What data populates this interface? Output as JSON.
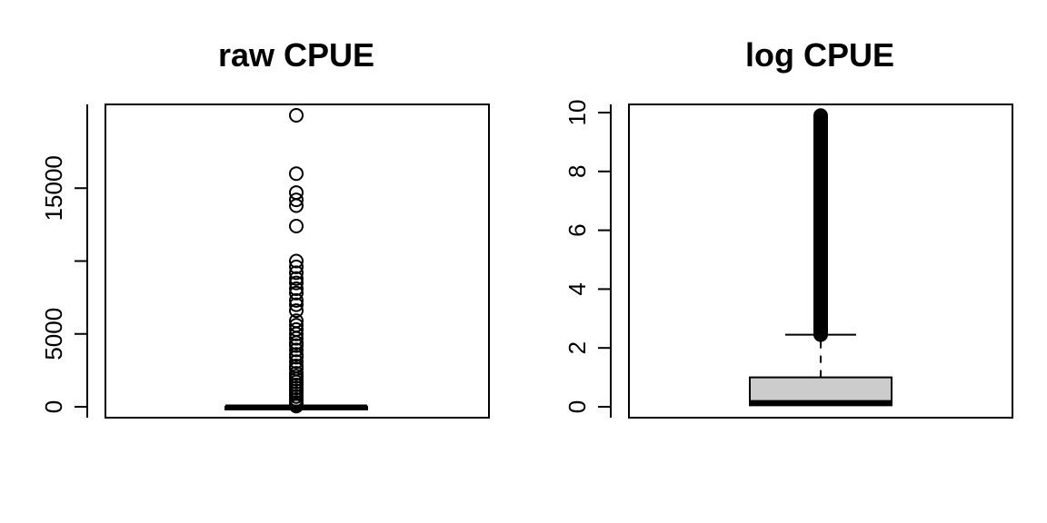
{
  "chart_data": [
    {
      "type": "box",
      "title": "raw CPUE",
      "xlabel": "",
      "ylabel": "",
      "ylim": [
        0,
        20000
      ],
      "yticks": [
        0,
        5000,
        10000,
        15000
      ],
      "ytick_labels": [
        "0",
        "5000",
        "",
        "15000"
      ],
      "box": {
        "min": 0,
        "q1": 0,
        "median": 0,
        "q3": 3,
        "max": 10
      },
      "box_fill": "#000000",
      "outliers": [
        20000,
        16000,
        14700,
        14200,
        13800,
        12400,
        10000,
        9600,
        9200,
        8800,
        8500,
        8100,
        7800,
        7300,
        7000,
        6600,
        5900,
        5600,
        5300,
        5000,
        4700,
        4400,
        4200,
        3900,
        3600,
        3400,
        3100,
        2800,
        2600,
        2300,
        2100,
        1900,
        1700,
        1500,
        1300,
        1100,
        900,
        700,
        500,
        300,
        150,
        50
      ],
      "grid": false
    },
    {
      "type": "box",
      "title": "log CPUE",
      "xlabel": "",
      "ylabel": "",
      "ylim": [
        0,
        10
      ],
      "yticks": [
        0,
        2,
        4,
        6,
        8,
        10
      ],
      "ytick_labels": [
        "0",
        "2",
        "4",
        "6",
        "8",
        "10"
      ],
      "box": {
        "min": 0,
        "q1": 0.05,
        "median": 0.15,
        "q3": 1.0,
        "max": 2.45
      },
      "box_fill": "#cccccc",
      "outlier_range": [
        2.45,
        9.9
      ],
      "grid": false
    }
  ]
}
